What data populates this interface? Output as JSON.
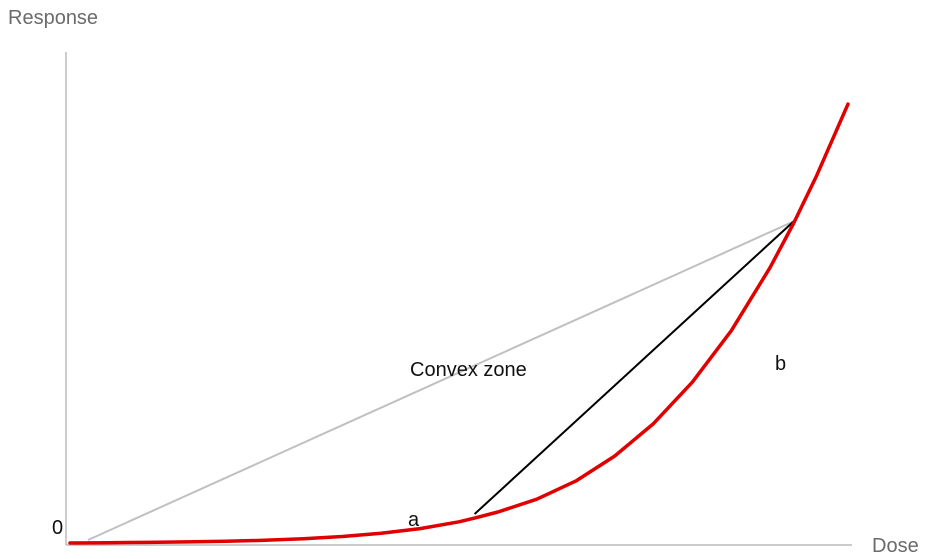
{
  "chart_data": {
    "type": "line",
    "xlabel": "Dose",
    "ylabel": "Response",
    "origin_label": "0",
    "xlim": [
      0,
      10
    ],
    "ylim": [
      0,
      6.5
    ],
    "grid": false,
    "series": [
      {
        "color": "#e00000",
        "x": [
          0,
          0.5,
          1,
          1.5,
          2,
          2.5,
          3,
          3.5,
          4,
          4.5,
          5,
          5.2,
          5.5,
          6,
          6.5,
          7,
          7.5,
          8,
          8.5,
          9,
          9.3,
          9.6,
          10
        ],
        "y": [
          0,
          0.004,
          0.008,
          0.014,
          0.023,
          0.036,
          0.056,
          0.086,
          0.13,
          0.19,
          0.28,
          0.33,
          0.41,
          0.58,
          0.82,
          1.15,
          1.58,
          2.13,
          2.81,
          3.65,
          4.23,
          4.87,
          5.81
        ]
      }
    ],
    "annotations": {
      "zone_text": "Convex zone",
      "point_a": {
        "label": "a",
        "x": 5.2,
        "y": 0.33
      },
      "point_b": {
        "label": "b",
        "x": 9.3,
        "y": 4.23
      },
      "chord_color": "#000000",
      "origin_line_color": "#c0c0c0",
      "axis_color": "#bbbbbb"
    }
  }
}
